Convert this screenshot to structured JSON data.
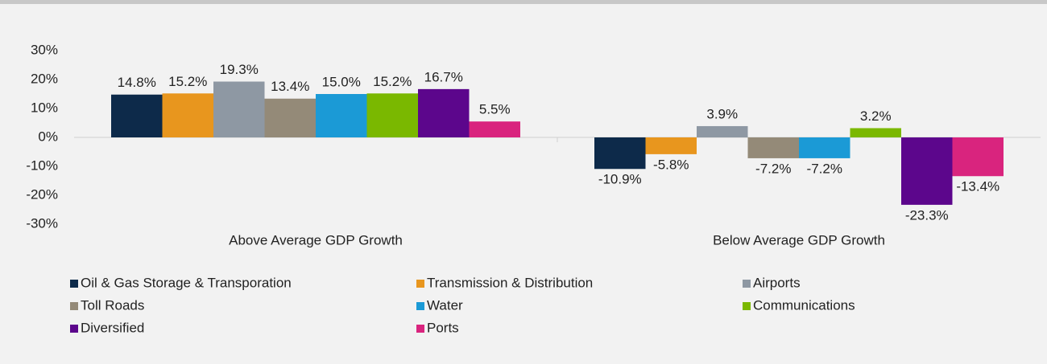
{
  "chart_data": {
    "type": "bar",
    "categories": [
      "Above Average GDP Growth",
      "Below Average GDP Growth"
    ],
    "series": [
      {
        "name": "Oil & Gas Storage & Transporation",
        "color": "#0d2a4a",
        "values": [
          14.8,
          -10.9
        ],
        "value_labels": [
          "14.8%",
          "-10.9%"
        ]
      },
      {
        "name": "Transmission & Distribution",
        "color": "#e8961e",
        "values": [
          15.2,
          -5.8
        ],
        "value_labels": [
          "15.2%",
          "-5.8%"
        ]
      },
      {
        "name": "Airports",
        "color": "#8e98a3",
        "values": [
          19.3,
          3.9
        ],
        "value_labels": [
          "19.3%",
          "3.9%"
        ]
      },
      {
        "name": "Toll Roads",
        "color": "#948a78",
        "values": [
          13.4,
          -7.2
        ],
        "value_labels": [
          "13.4%",
          "-7.2%"
        ]
      },
      {
        "name": "Water",
        "color": "#1b9ad6",
        "values": [
          15.0,
          -7.2
        ],
        "value_labels": [
          "15.0%",
          "-7.2%"
        ]
      },
      {
        "name": "Communications",
        "color": "#7ab800",
        "values": [
          15.2,
          3.2
        ],
        "value_labels": [
          "15.2%",
          "3.2%"
        ]
      },
      {
        "name": "Diversified",
        "color": "#5c068c",
        "values": [
          16.7,
          -23.3
        ],
        "value_labels": [
          "16.7%",
          "-23.3%"
        ]
      },
      {
        "name": "Ports",
        "color": "#d9247e",
        "values": [
          5.5,
          -13.4
        ],
        "value_labels": [
          "5.5%",
          "-13.4%"
        ]
      }
    ],
    "ylim": [
      -30,
      30
    ],
    "yticks": [
      {
        "value": -30,
        "label": "-30%"
      },
      {
        "value": -20,
        "label": "-20%"
      },
      {
        "value": -10,
        "label": "-10%"
      },
      {
        "value": 0,
        "label": "0%"
      },
      {
        "value": 10,
        "label": "10%"
      },
      {
        "value": 20,
        "label": "20%"
      },
      {
        "value": 30,
        "label": "30%"
      }
    ],
    "grid": false,
    "legend": "bottom"
  }
}
